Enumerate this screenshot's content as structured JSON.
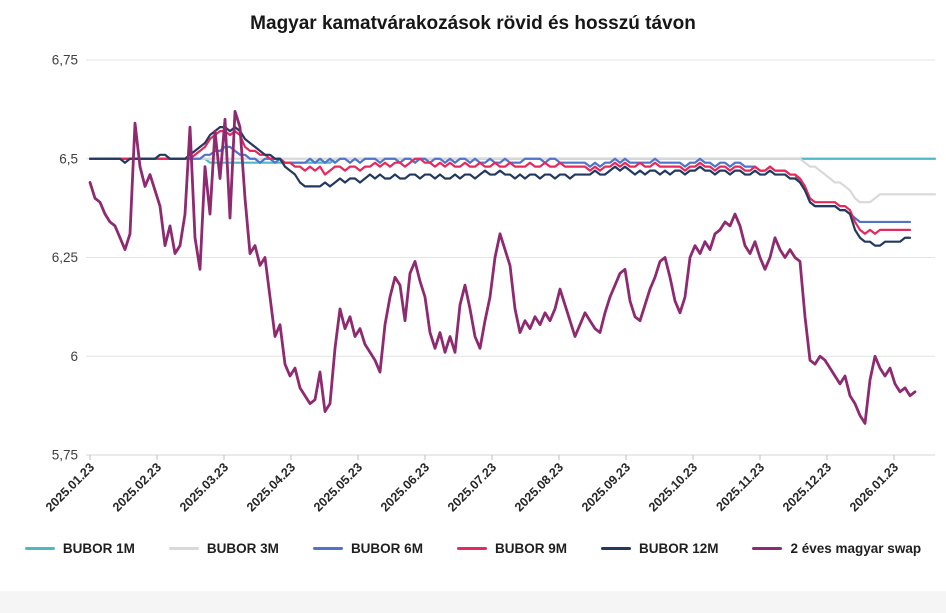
{
  "chart_data": {
    "type": "line",
    "title": "Magyar kamatvárakozások rövid és hosszú távon",
    "grid": "horizontal",
    "legend_position": "bottom",
    "ylim": [
      5.75,
      6.75
    ],
    "y_tick_values": [
      5.75,
      6.0,
      6.25,
      6.5,
      6.75
    ],
    "y_tick_labels": [
      "5,75",
      "6",
      "6,25",
      "6,5",
      "6,75"
    ],
    "x_tick_labels": [
      "2025.01.23",
      "2025.02.23",
      "2025.03.23",
      "2025.04.23",
      "2025.05.23",
      "2025.06.23",
      "2025.07.23",
      "2025.08.23",
      "2025.09.23",
      "2025.10.23",
      "2025.11.23",
      "2025.12.23",
      "2026.01.23"
    ],
    "series": [
      {
        "name": "BUBOR 1M",
        "color": "#4FB8C4",
        "values": [
          6.5,
          6.5,
          6.5,
          6.5,
          6.5,
          6.5,
          6.5,
          6.5,
          6.5,
          6.5,
          6.5,
          6.5,
          6.5,
          6.5,
          6.5,
          6.5,
          6.5,
          6.5,
          6.5,
          6.5,
          6.5,
          6.5,
          6.5,
          6.5,
          6.49,
          6.49,
          6.49,
          6.49,
          6.49,
          6.49,
          6.49,
          6.49,
          6.49,
          6.49,
          6.49,
          6.49,
          6.49,
          6.49,
          6.49,
          6.49,
          6.49,
          6.49,
          6.49,
          6.49,
          6.49,
          6.49,
          6.49,
          6.49,
          6.49,
          6.5,
          6.5,
          6.5,
          6.5,
          6.5,
          6.5,
          6.5,
          6.5,
          6.5,
          6.5,
          6.5,
          6.5,
          6.5,
          6.5,
          6.5,
          6.5,
          6.5,
          6.5,
          6.5,
          6.5,
          6.5,
          6.5,
          6.5,
          6.5,
          6.5,
          6.5,
          6.5,
          6.5,
          6.5,
          6.5,
          6.5,
          6.5,
          6.5,
          6.5,
          6.5,
          6.5,
          6.5,
          6.5,
          6.5,
          6.5,
          6.5,
          6.5,
          6.5,
          6.5,
          6.5,
          6.5,
          6.5,
          6.5,
          6.5,
          6.5,
          6.5,
          6.5,
          6.5,
          6.5,
          6.5,
          6.5,
          6.5,
          6.5,
          6.5,
          6.5,
          6.5,
          6.5,
          6.5,
          6.5,
          6.5,
          6.5,
          6.5,
          6.5,
          6.5,
          6.5,
          6.5,
          6.5,
          6.5,
          6.5,
          6.5,
          6.5,
          6.5,
          6.5,
          6.5,
          6.5,
          6.5,
          6.5,
          6.5,
          6.5,
          6.5,
          6.5,
          6.5,
          6.5,
          6.5,
          6.5,
          6.5,
          6.5,
          6.5,
          6.5,
          6.5,
          6.5,
          6.5,
          6.5,
          6.5,
          6.5,
          6.5,
          6.5,
          6.5,
          6.5,
          6.5,
          6.5,
          6.5,
          6.5,
          6.5,
          6.5,
          6.5,
          6.5,
          6.5,
          6.5,
          6.5,
          6.5,
          6.5,
          6.5,
          6.5,
          6.5,
          6.5
        ]
      },
      {
        "name": "BUBOR 3M",
        "color": "#D9D9D9",
        "values": [
          6.5,
          6.5,
          6.5,
          6.5,
          6.5,
          6.5,
          6.5,
          6.5,
          6.5,
          6.5,
          6.5,
          6.5,
          6.5,
          6.5,
          6.5,
          6.5,
          6.5,
          6.5,
          6.5,
          6.5,
          6.5,
          6.5,
          6.5,
          6.5,
          6.5,
          6.5,
          6.5,
          6.5,
          6.5,
          6.5,
          6.5,
          6.5,
          6.5,
          6.5,
          6.5,
          6.5,
          6.5,
          6.5,
          6.5,
          6.5,
          6.5,
          6.5,
          6.5,
          6.5,
          6.5,
          6.5,
          6.5,
          6.5,
          6.5,
          6.5,
          6.5,
          6.5,
          6.5,
          6.5,
          6.5,
          6.5,
          6.5,
          6.5,
          6.5,
          6.5,
          6.5,
          6.5,
          6.5,
          6.5,
          6.5,
          6.5,
          6.5,
          6.5,
          6.5,
          6.5,
          6.5,
          6.5,
          6.5,
          6.5,
          6.5,
          6.5,
          6.5,
          6.5,
          6.5,
          6.5,
          6.5,
          6.5,
          6.5,
          6.5,
          6.5,
          6.5,
          6.5,
          6.5,
          6.5,
          6.5,
          6.5,
          6.5,
          6.5,
          6.5,
          6.5,
          6.5,
          6.5,
          6.5,
          6.5,
          6.5,
          6.5,
          6.5,
          6.5,
          6.5,
          6.5,
          6.5,
          6.5,
          6.5,
          6.5,
          6.5,
          6.5,
          6.5,
          6.5,
          6.5,
          6.5,
          6.5,
          6.5,
          6.5,
          6.5,
          6.5,
          6.5,
          6.5,
          6.5,
          6.5,
          6.5,
          6.5,
          6.5,
          6.5,
          6.5,
          6.5,
          6.5,
          6.5,
          6.5,
          6.5,
          6.5,
          6.5,
          6.5,
          6.5,
          6.5,
          6.5,
          6.5,
          6.5,
          6.5,
          6.49,
          6.48,
          6.48,
          6.47,
          6.46,
          6.45,
          6.44,
          6.44,
          6.43,
          6.42,
          6.4,
          6.39,
          6.39,
          6.39,
          6.4,
          6.41,
          6.41,
          6.41,
          6.41,
          6.41,
          6.41,
          6.41,
          6.41,
          6.41,
          6.41,
          6.41,
          6.41
        ]
      },
      {
        "name": "BUBOR 6M",
        "color": "#4F74C9",
        "values": [
          6.5,
          6.5,
          6.5,
          6.5,
          6.5,
          6.5,
          6.5,
          6.5,
          6.5,
          6.5,
          6.5,
          6.5,
          6.5,
          6.5,
          6.5,
          6.5,
          6.5,
          6.5,
          6.5,
          6.5,
          6.5,
          6.5,
          6.5,
          6.51,
          6.51,
          6.52,
          6.52,
          6.53,
          6.53,
          6.52,
          6.51,
          6.51,
          6.5,
          6.5,
          6.49,
          6.5,
          6.5,
          6.49,
          6.5,
          6.49,
          6.49,
          6.49,
          6.49,
          6.49,
          6.5,
          6.49,
          6.5,
          6.49,
          6.5,
          6.49,
          6.5,
          6.5,
          6.49,
          6.5,
          6.49,
          6.5,
          6.5,
          6.5,
          6.49,
          6.5,
          6.5,
          6.5,
          6.49,
          6.5,
          6.5,
          6.49,
          6.5,
          6.5,
          6.49,
          6.5,
          6.5,
          6.49,
          6.5,
          6.49,
          6.5,
          6.5,
          6.49,
          6.5,
          6.49,
          6.49,
          6.5,
          6.49,
          6.49,
          6.5,
          6.49,
          6.49,
          6.49,
          6.5,
          6.5,
          6.5,
          6.5,
          6.49,
          6.5,
          6.5,
          6.49,
          6.49,
          6.49,
          6.49,
          6.49,
          6.49,
          6.48,
          6.49,
          6.48,
          6.49,
          6.49,
          6.5,
          6.49,
          6.5,
          6.49,
          6.49,
          6.49,
          6.49,
          6.49,
          6.5,
          6.49,
          6.49,
          6.49,
          6.49,
          6.49,
          6.48,
          6.49,
          6.49,
          6.5,
          6.49,
          6.49,
          6.48,
          6.49,
          6.49,
          6.48,
          6.49,
          6.49,
          6.48,
          6.48,
          6.48,
          6.47,
          6.47,
          6.48,
          6.47,
          6.47,
          6.47,
          6.46,
          6.46,
          6.44,
          6.42,
          6.39,
          6.38,
          6.38,
          6.38,
          6.38,
          6.38,
          6.37,
          6.37,
          6.36,
          6.35,
          6.34,
          6.34,
          6.34,
          6.34,
          6.34,
          6.34,
          6.34,
          6.34,
          6.34,
          6.34,
          6.34
        ]
      },
      {
        "name": "BUBOR 9M",
        "color": "#E6295C",
        "values": [
          6.5,
          6.5,
          6.5,
          6.5,
          6.5,
          6.5,
          6.5,
          6.5,
          6.5,
          6.5,
          6.5,
          6.5,
          6.5,
          6.5,
          6.5,
          6.5,
          6.5,
          6.5,
          6.5,
          6.5,
          6.5,
          6.51,
          6.52,
          6.53,
          6.55,
          6.56,
          6.57,
          6.57,
          6.56,
          6.57,
          6.56,
          6.53,
          6.52,
          6.52,
          6.51,
          6.51,
          6.5,
          6.5,
          6.5,
          6.49,
          6.49,
          6.48,
          6.48,
          6.47,
          6.48,
          6.47,
          6.48,
          6.46,
          6.47,
          6.48,
          6.48,
          6.47,
          6.48,
          6.48,
          6.47,
          6.48,
          6.48,
          6.49,
          6.48,
          6.49,
          6.48,
          6.49,
          6.49,
          6.48,
          6.49,
          6.5,
          6.5,
          6.49,
          6.49,
          6.48,
          6.49,
          6.48,
          6.49,
          6.48,
          6.48,
          6.49,
          6.48,
          6.48,
          6.49,
          6.48,
          6.48,
          6.49,
          6.48,
          6.48,
          6.49,
          6.48,
          6.48,
          6.48,
          6.49,
          6.48,
          6.48,
          6.49,
          6.48,
          6.48,
          6.49,
          6.48,
          6.48,
          6.48,
          6.48,
          6.48,
          6.47,
          6.48,
          6.47,
          6.48,
          6.48,
          6.49,
          6.48,
          6.49,
          6.48,
          6.48,
          6.49,
          6.48,
          6.48,
          6.49,
          6.48,
          6.48,
          6.48,
          6.48,
          6.48,
          6.47,
          6.48,
          6.48,
          6.49,
          6.48,
          6.48,
          6.47,
          6.48,
          6.48,
          6.47,
          6.48,
          6.48,
          6.47,
          6.47,
          6.48,
          6.47,
          6.47,
          6.48,
          6.47,
          6.47,
          6.47,
          6.46,
          6.46,
          6.45,
          6.43,
          6.4,
          6.39,
          6.39,
          6.39,
          6.39,
          6.39,
          6.38,
          6.38,
          6.37,
          6.34,
          6.32,
          6.31,
          6.32,
          6.31,
          6.32,
          6.32,
          6.32,
          6.32,
          6.32,
          6.32,
          6.32
        ]
      },
      {
        "name": "BUBOR 12M",
        "color": "#24395E",
        "values": [
          6.5,
          6.5,
          6.5,
          6.5,
          6.5,
          6.5,
          6.5,
          6.49,
          6.5,
          6.5,
          6.5,
          6.5,
          6.5,
          6.5,
          6.51,
          6.51,
          6.5,
          6.5,
          6.5,
          6.5,
          6.51,
          6.52,
          6.53,
          6.54,
          6.56,
          6.57,
          6.58,
          6.58,
          6.57,
          6.58,
          6.57,
          6.55,
          6.54,
          6.53,
          6.52,
          6.51,
          6.51,
          6.5,
          6.5,
          6.48,
          6.47,
          6.46,
          6.44,
          6.43,
          6.43,
          6.43,
          6.43,
          6.44,
          6.43,
          6.44,
          6.45,
          6.44,
          6.45,
          6.45,
          6.44,
          6.45,
          6.46,
          6.45,
          6.46,
          6.45,
          6.45,
          6.46,
          6.45,
          6.45,
          6.46,
          6.46,
          6.45,
          6.46,
          6.46,
          6.45,
          6.46,
          6.45,
          6.45,
          6.46,
          6.45,
          6.46,
          6.46,
          6.45,
          6.46,
          6.47,
          6.46,
          6.46,
          6.47,
          6.46,
          6.46,
          6.45,
          6.46,
          6.45,
          6.46,
          6.46,
          6.45,
          6.46,
          6.46,
          6.45,
          6.46,
          6.46,
          6.45,
          6.46,
          6.46,
          6.46,
          6.46,
          6.47,
          6.46,
          6.46,
          6.47,
          6.48,
          6.47,
          6.48,
          6.47,
          6.46,
          6.47,
          6.46,
          6.47,
          6.47,
          6.46,
          6.47,
          6.46,
          6.47,
          6.47,
          6.46,
          6.47,
          6.47,
          6.48,
          6.47,
          6.47,
          6.46,
          6.47,
          6.47,
          6.46,
          6.47,
          6.47,
          6.46,
          6.46,
          6.47,
          6.46,
          6.46,
          6.47,
          6.46,
          6.46,
          6.46,
          6.45,
          6.45,
          6.44,
          6.42,
          6.39,
          6.38,
          6.38,
          6.38,
          6.38,
          6.38,
          6.37,
          6.37,
          6.36,
          6.32,
          6.3,
          6.29,
          6.29,
          6.28,
          6.28,
          6.29,
          6.29,
          6.29,
          6.29,
          6.3,
          6.3
        ]
      },
      {
        "name": "2 éves magyar swap",
        "color": "#8E2A6F",
        "values": [
          6.44,
          6.4,
          6.39,
          6.36,
          6.34,
          6.33,
          6.3,
          6.27,
          6.31,
          6.59,
          6.48,
          6.43,
          6.46,
          6.42,
          6.38,
          6.28,
          6.33,
          6.26,
          6.28,
          6.36,
          6.58,
          6.3,
          6.22,
          6.48,
          6.36,
          6.57,
          6.45,
          6.6,
          6.35,
          6.62,
          6.58,
          6.4,
          6.26,
          6.28,
          6.23,
          6.25,
          6.15,
          6.05,
          6.08,
          5.98,
          5.95,
          5.97,
          5.92,
          5.9,
          5.88,
          5.89,
          5.96,
          5.86,
          5.88,
          6.02,
          6.12,
          6.07,
          6.1,
          6.05,
          6.07,
          6.03,
          6.01,
          5.99,
          5.96,
          6.08,
          6.15,
          6.2,
          6.18,
          6.09,
          6.21,
          6.24,
          6.19,
          6.15,
          6.06,
          6.02,
          6.06,
          6.01,
          6.05,
          6.01,
          6.13,
          6.18,
          6.12,
          6.05,
          6.02,
          6.09,
          6.15,
          6.25,
          6.31,
          6.27,
          6.23,
          6.12,
          6.06,
          6.09,
          6.07,
          6.1,
          6.08,
          6.11,
          6.09,
          6.12,
          6.17,
          6.13,
          6.09,
          6.05,
          6.08,
          6.11,
          6.09,
          6.07,
          6.06,
          6.11,
          6.15,
          6.18,
          6.21,
          6.22,
          6.14,
          6.1,
          6.09,
          6.13,
          6.17,
          6.2,
          6.24,
          6.25,
          6.2,
          6.14,
          6.11,
          6.15,
          6.25,
          6.28,
          6.26,
          6.29,
          6.27,
          6.31,
          6.32,
          6.34,
          6.33,
          6.36,
          6.33,
          6.28,
          6.26,
          6.29,
          6.25,
          6.22,
          6.25,
          6.3,
          6.27,
          6.25,
          6.27,
          6.25,
          6.24,
          6.1,
          5.99,
          5.98,
          6.0,
          5.99,
          5.97,
          5.95,
          5.93,
          5.95,
          5.9,
          5.88,
          5.85,
          5.83,
          5.94,
          6.0,
          5.97,
          5.95,
          5.97,
          5.93,
          5.91,
          5.92,
          5.9,
          5.91
        ]
      }
    ]
  }
}
